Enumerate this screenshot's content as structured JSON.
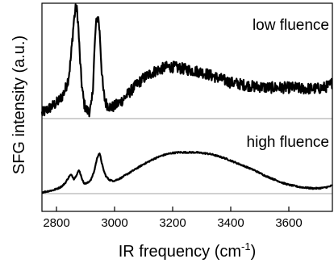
{
  "chart_data": {
    "type": "line",
    "xlabel_main": "IR frequency (cm",
    "xlabel_sup": "-1",
    "xlabel_end": ")",
    "ylabel": "SFG intensity (a.u.)",
    "xlim": [
      2750,
      3750
    ],
    "xticks": [
      2800,
      3000,
      3200,
      3400,
      3600
    ],
    "xtick_labels": [
      "2800",
      "3000",
      "3200",
      "3400",
      "3600"
    ],
    "grid": false,
    "series": [
      {
        "name": "low fluence",
        "color": "#000000",
        "baseline_color": "#a0a0a0",
        "noise": 0.055,
        "x": [
          2750,
          2760,
          2770,
          2780,
          2790,
          2800,
          2810,
          2820,
          2830,
          2840,
          2845,
          2850,
          2855,
          2860,
          2865,
          2868,
          2872,
          2876,
          2880,
          2885,
          2890,
          2895,
          2900,
          2905,
          2910,
          2915,
          2920,
          2925,
          2930,
          2935,
          2940,
          2945,
          2950,
          2955,
          2960,
          2965,
          2970,
          2980,
          2990,
          3000,
          3020,
          3040,
          3060,
          3080,
          3100,
          3120,
          3140,
          3160,
          3180,
          3200,
          3220,
          3240,
          3260,
          3280,
          3300,
          3320,
          3340,
          3360,
          3380,
          3400,
          3420,
          3440,
          3460,
          3480,
          3500,
          3520,
          3540,
          3560,
          3580,
          3600,
          3620,
          3640,
          3660,
          3680,
          3700,
          3720,
          3740,
          3750
        ],
        "y": [
          0.05,
          0.07,
          0.09,
          0.11,
          0.13,
          0.15,
          0.18,
          0.22,
          0.28,
          0.38,
          0.47,
          0.6,
          0.78,
          0.95,
          1.05,
          1.08,
          1.02,
          0.85,
          0.62,
          0.4,
          0.25,
          0.15,
          0.1,
          0.08,
          0.07,
          0.08,
          0.12,
          0.28,
          0.6,
          0.88,
          0.98,
          0.96,
          0.78,
          0.5,
          0.3,
          0.2,
          0.15,
          0.12,
          0.11,
          0.12,
          0.16,
          0.22,
          0.28,
          0.34,
          0.39,
          0.43,
          0.46,
          0.48,
          0.5,
          0.5,
          0.49,
          0.48,
          0.47,
          0.46,
          0.45,
          0.43,
          0.41,
          0.39,
          0.37,
          0.35,
          0.34,
          0.33,
          0.32,
          0.31,
          0.31,
          0.3,
          0.3,
          0.3,
          0.3,
          0.3,
          0.3,
          0.29,
          0.29,
          0.29,
          0.29,
          0.3,
          0.32,
          0.35
        ]
      },
      {
        "name": "high fluence",
        "color": "#000000",
        "baseline_color": "#a0a0a0",
        "noise": 0.012,
        "x": [
          2750,
          2760,
          2770,
          2780,
          2790,
          2800,
          2810,
          2820,
          2830,
          2840,
          2845,
          2850,
          2855,
          2860,
          2865,
          2870,
          2875,
          2878,
          2880,
          2885,
          2890,
          2895,
          2900,
          2910,
          2920,
          2930,
          2935,
          2940,
          2945,
          2948,
          2952,
          2956,
          2960,
          2965,
          2970,
          2980,
          2990,
          3000,
          3020,
          3040,
          3060,
          3080,
          3100,
          3120,
          3140,
          3160,
          3180,
          3200,
          3220,
          3240,
          3260,
          3280,
          3300,
          3320,
          3340,
          3360,
          3380,
          3400,
          3420,
          3440,
          3460,
          3480,
          3500,
          3520,
          3540,
          3560,
          3580,
          3600,
          3620,
          3640,
          3660,
          3680,
          3700,
          3720,
          3740,
          3750
        ],
        "y": [
          0.02,
          0.03,
          0.04,
          0.05,
          0.06,
          0.08,
          0.1,
          0.13,
          0.18,
          0.26,
          0.3,
          0.32,
          0.29,
          0.25,
          0.28,
          0.33,
          0.38,
          0.39,
          0.37,
          0.3,
          0.22,
          0.18,
          0.17,
          0.19,
          0.25,
          0.38,
          0.5,
          0.6,
          0.67,
          0.68,
          0.62,
          0.52,
          0.44,
          0.36,
          0.3,
          0.24,
          0.22,
          0.22,
          0.26,
          0.32,
          0.38,
          0.44,
          0.5,
          0.55,
          0.6,
          0.64,
          0.67,
          0.69,
          0.7,
          0.7,
          0.7,
          0.7,
          0.69,
          0.68,
          0.66,
          0.63,
          0.6,
          0.56,
          0.52,
          0.48,
          0.44,
          0.4,
          0.35,
          0.3,
          0.26,
          0.22,
          0.18,
          0.15,
          0.13,
          0.11,
          0.1,
          0.09,
          0.09,
          0.1,
          0.12,
          0.14
        ]
      }
    ]
  }
}
